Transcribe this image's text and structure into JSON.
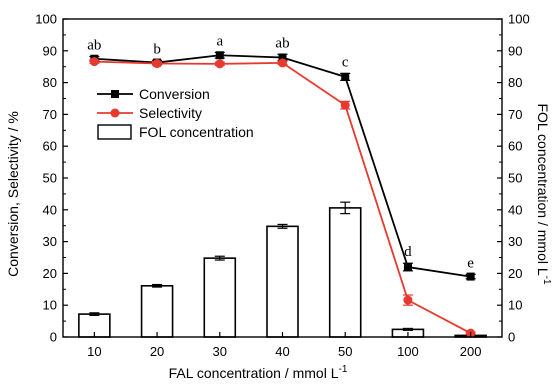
{
  "chart_data": {
    "type": "bar",
    "categories": [
      "10",
      "20",
      "30",
      "40",
      "50",
      "100",
      "200"
    ],
    "xlabel": "FAL concentration / mmol L",
    "xlabel_sup": "-1",
    "ylabel_left": "Conversion, Selectivity / %",
    "ylabel_right": "FOL concentration / mmol L",
    "ylabel_right_sup": "-1",
    "ylim_left": [
      0,
      100
    ],
    "ylim_right": [
      0,
      100
    ],
    "yticks": [
      "0",
      "10",
      "20",
      "30",
      "40",
      "50",
      "60",
      "70",
      "80",
      "90",
      "100"
    ],
    "grid": false,
    "legend_position": "upper-left",
    "series": [
      {
        "name": "FOL concentration",
        "kind": "bar",
        "axis": "right",
        "color": "#000000",
        "fill": "#ffffff",
        "x": [
          10,
          20,
          30,
          40,
          50,
          100,
          200
        ],
        "values": [
          7.2,
          16.1,
          24.8,
          34.8,
          40.6,
          2.4,
          0.5
        ],
        "errors": [
          0.4,
          0.4,
          0.6,
          0.6,
          1.8,
          0.3,
          0.2
        ]
      },
      {
        "name": "Conversion",
        "kind": "line",
        "marker": "square",
        "axis": "left",
        "color": "#000000",
        "x": [
          10,
          20,
          30,
          40,
          50,
          100,
          200
        ],
        "values": [
          87.5,
          86.3,
          88.6,
          87.9,
          81.8,
          22.0,
          19.0
        ],
        "errors": [
          0.7,
          0.7,
          0.9,
          1.0,
          1.1,
          1.2,
          0.7
        ]
      },
      {
        "name": "Selectivity",
        "kind": "line",
        "marker": "circle",
        "axis": "left",
        "color": "#e8392e",
        "x": [
          10,
          20,
          30,
          40,
          50,
          100,
          200
        ],
        "values": [
          86.6,
          86.0,
          85.9,
          86.2,
          72.9,
          11.6,
          1.2
        ],
        "errors": [
          0.5,
          0.5,
          0.5,
          0.5,
          1.2,
          1.6,
          0.3
        ]
      }
    ],
    "annotations": [
      {
        "category": "10",
        "text": "ab"
      },
      {
        "category": "20",
        "text": "b"
      },
      {
        "category": "30",
        "text": "a"
      },
      {
        "category": "40",
        "text": "ab"
      },
      {
        "category": "50",
        "text": "c"
      },
      {
        "category": "100",
        "text": "d"
      },
      {
        "category": "200",
        "text": "e"
      }
    ]
  }
}
